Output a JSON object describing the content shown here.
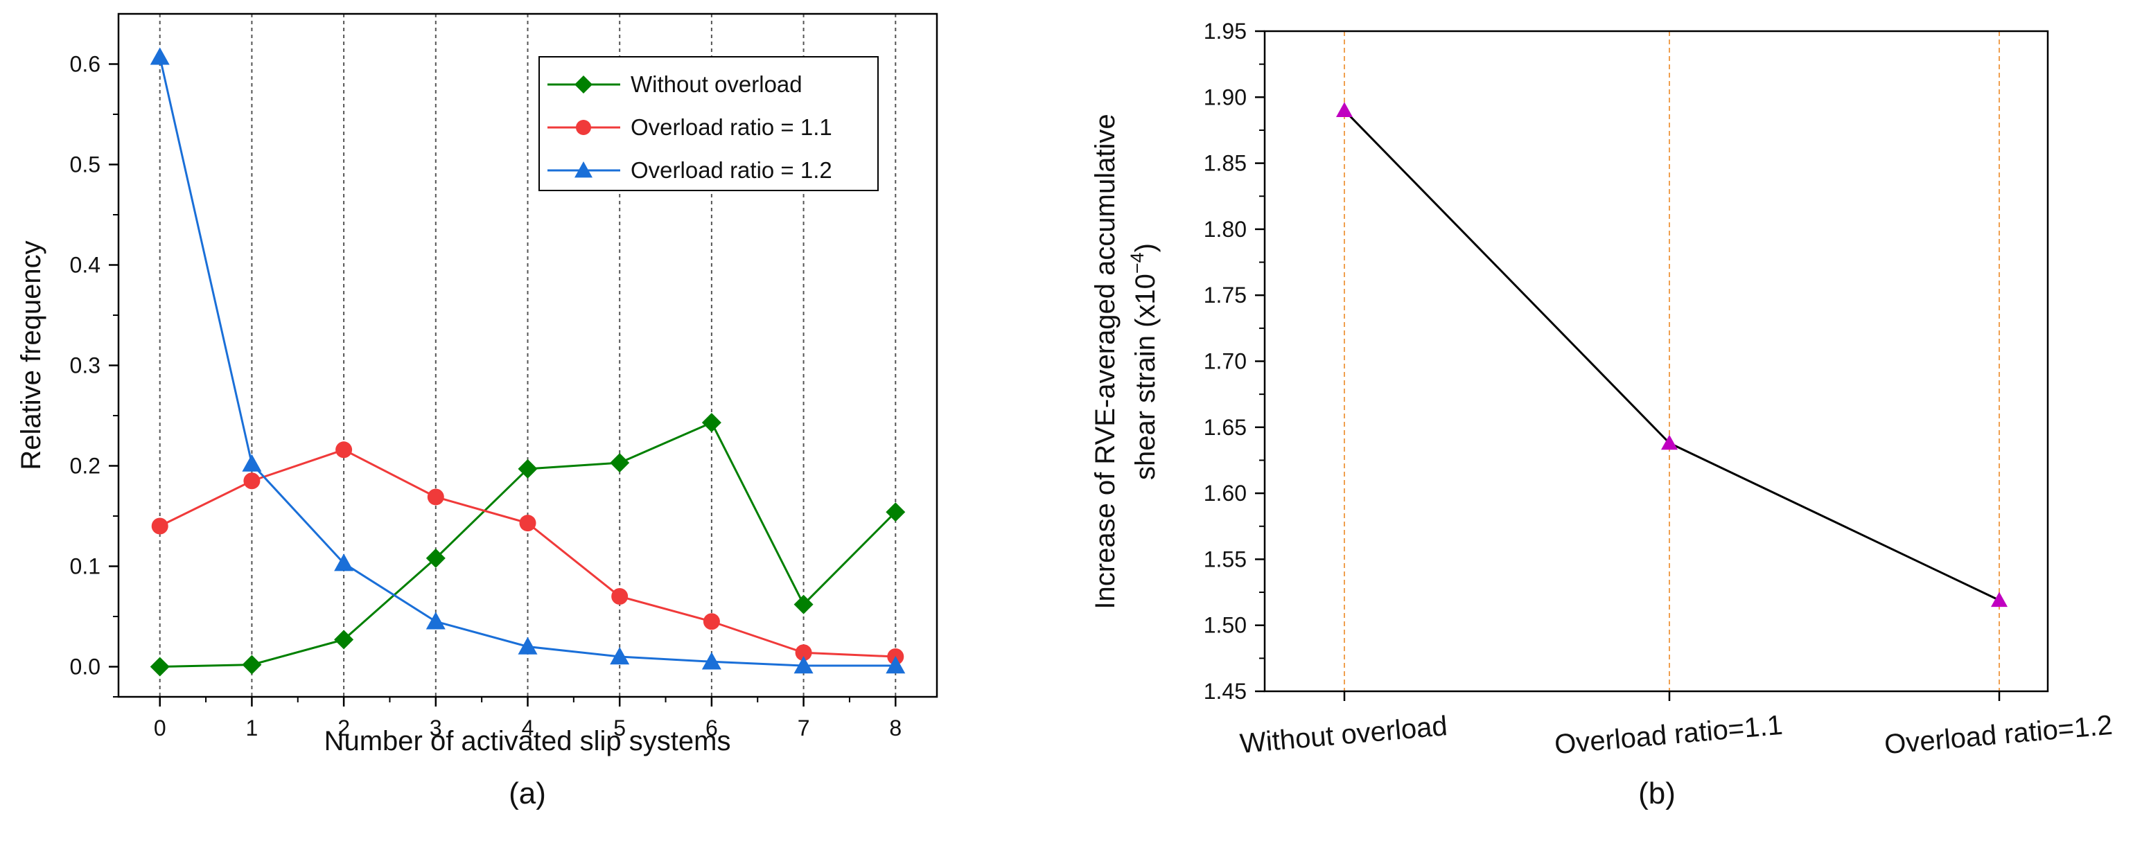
{
  "chart_data": [
    {
      "type": "line",
      "panel_label": "(a)",
      "title": "",
      "xlabel": "Number of activated slip systems",
      "ylabel": "Relative frequency",
      "x": [
        0,
        1,
        2,
        3,
        4,
        5,
        6,
        7,
        8
      ],
      "x_tick_labels": [
        "0",
        "1",
        "2",
        "3",
        "4",
        "5",
        "6",
        "7",
        "8"
      ],
      "y_tick_labels": [
        "0.0",
        "0.1",
        "0.2",
        "0.3",
        "0.4",
        "0.5",
        "0.6"
      ],
      "xlim": [
        -0.45,
        8.45
      ],
      "ylim": [
        -0.03,
        0.65
      ],
      "y_ticks": [
        0.0,
        0.1,
        0.2,
        0.3,
        0.4,
        0.5,
        0.6
      ],
      "grid": "vertical dashed lines at x ticks",
      "legend": "top-right",
      "series": [
        {
          "name": "Without overload",
          "color": "#008000",
          "marker": "diamond",
          "values": [
            0.0,
            0.002,
            0.027,
            0.108,
            0.197,
            0.203,
            0.243,
            0.062,
            0.154
          ]
        },
        {
          "name": "Overload ratio = 1.1",
          "color": "#f03a3a",
          "marker": "circle",
          "values": [
            0.14,
            0.185,
            0.216,
            0.169,
            0.143,
            0.07,
            0.045,
            0.014,
            0.01
          ]
        },
        {
          "name": "Overload ratio = 1.2",
          "color": "#1a6fd8",
          "marker": "triangle",
          "values": [
            0.607,
            0.202,
            0.103,
            0.045,
            0.02,
            0.01,
            0.005,
            0.001,
            0.001
          ]
        }
      ]
    },
    {
      "type": "line",
      "panel_label": "(b)",
      "title": "",
      "xlabel": "",
      "ylabel_line1": "Increase of RVE-averaged accumulative",
      "ylabel_line2_prefix": "shear strain (x10",
      "ylabel_line2_sup": "−4",
      "ylabel_line2_suffix": ")",
      "categories": [
        "Without overload",
        "Overload ratio=1.1",
        "Overload ratio=1.2"
      ],
      "y_tick_labels": [
        "1.45",
        "1.50",
        "1.55",
        "1.60",
        "1.65",
        "1.70",
        "1.75",
        "1.80",
        "1.85",
        "1.90",
        "1.95"
      ],
      "ylim": [
        1.45,
        1.95
      ],
      "y_ticks": [
        1.45,
        1.5,
        1.55,
        1.6,
        1.65,
        1.7,
        1.75,
        1.8,
        1.85,
        1.9,
        1.95
      ],
      "grid": "vertical dashed orange lines at categories",
      "series": [
        {
          "name": "RVE-averaged accumulative shear strain increase",
          "color": "#000000",
          "marker": "triangle",
          "marker_color": "#c000c0",
          "values": [
            1.89,
            1.638,
            1.519
          ]
        }
      ]
    }
  ],
  "colors": {
    "axis": "#000000",
    "grid_a": "#555555",
    "grid_b": "#f0a050"
  }
}
